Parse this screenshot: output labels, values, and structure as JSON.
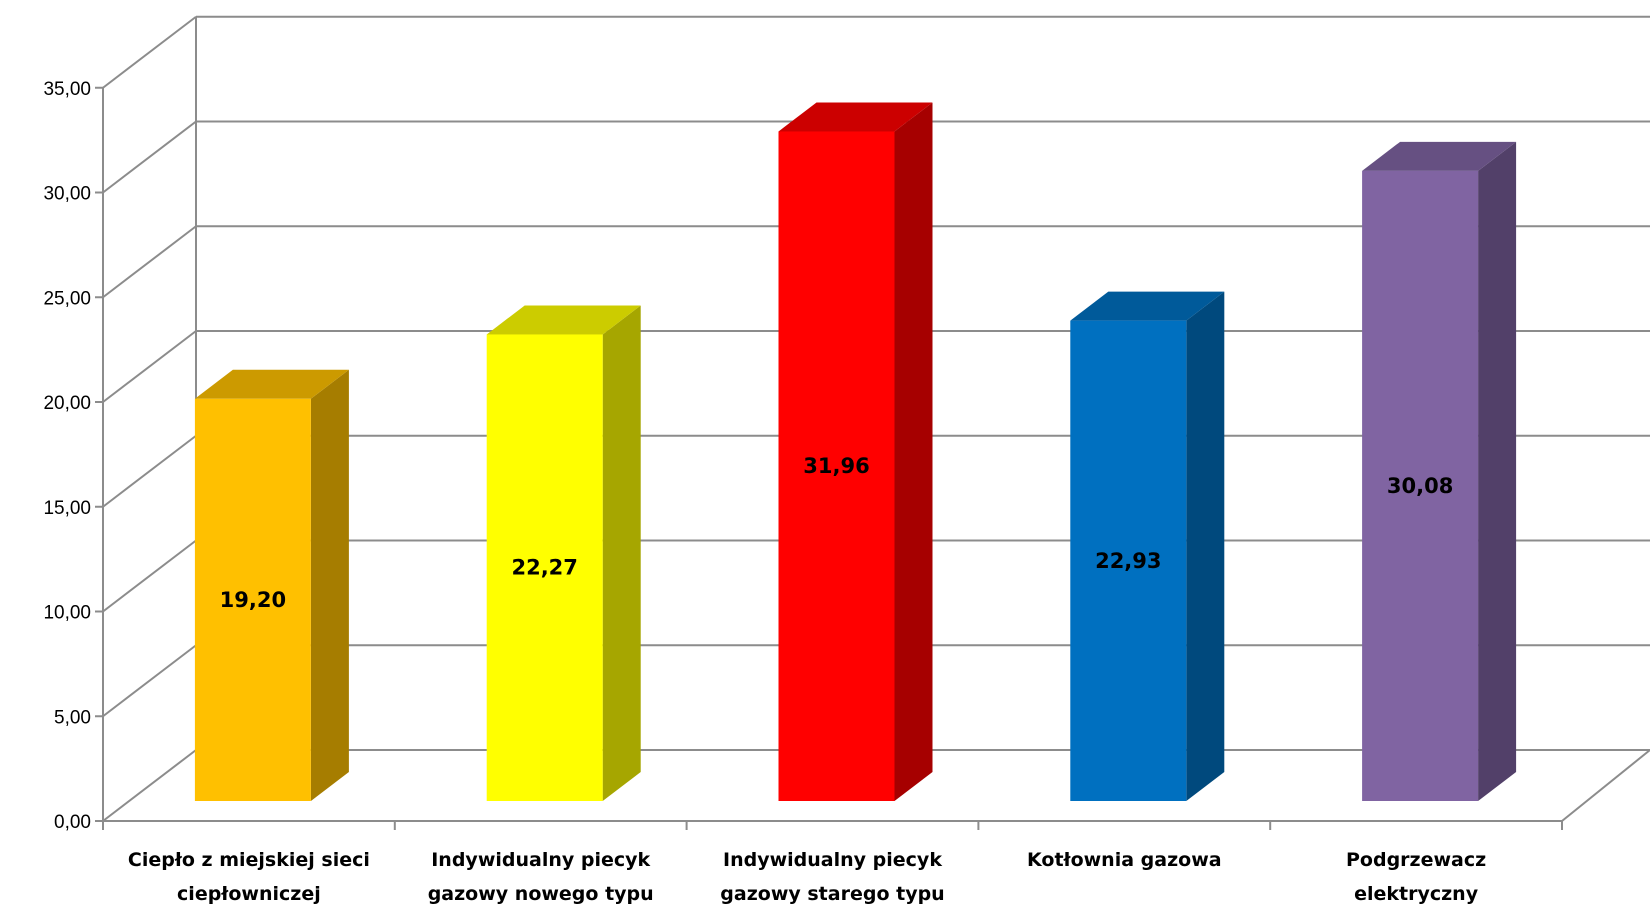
{
  "chart_data": {
    "type": "bar",
    "title": "",
    "xlabel": "",
    "ylabel": "",
    "ylim": [
      0,
      35
    ],
    "ytick_step": 5,
    "ytick_labels": [
      "0,00",
      "5,00",
      "10,00",
      "15,00",
      "20,00",
      "25,00",
      "30,00",
      "35,00"
    ],
    "grid": true,
    "legend": "none",
    "categories": [
      [
        "Ciepło z miejskiej sieci",
        "ciepłowniczej"
      ],
      [
        "Indywidualny piecyk",
        "gazowy nowego typu"
      ],
      [
        "Indywidualny piecyk",
        "gazowy starego typu"
      ],
      [
        "Kotłownia gazowa"
      ],
      [
        "Podgrzewacz",
        "elektryczny"
      ]
    ],
    "values": [
      19.2,
      22.27,
      31.96,
      22.93,
      30.08
    ],
    "value_labels": [
      "19,20",
      "22,27",
      "31,96",
      "22,93",
      "30,08"
    ],
    "colors": [
      {
        "front": "#ffc000",
        "top": "#cc9a00",
        "side": "#a67d00"
      },
      {
        "front": "#ffff00",
        "top": "#cccc00",
        "side": "#a6a600"
      },
      {
        "front": "#ff0000",
        "top": "#cc0000",
        "side": "#a60000"
      },
      {
        "front": "#0070c0",
        "top": "#005a9a",
        "side": "#00497d"
      },
      {
        "front": "#8064a2",
        "top": "#665082",
        "side": "#524069"
      }
    ]
  }
}
